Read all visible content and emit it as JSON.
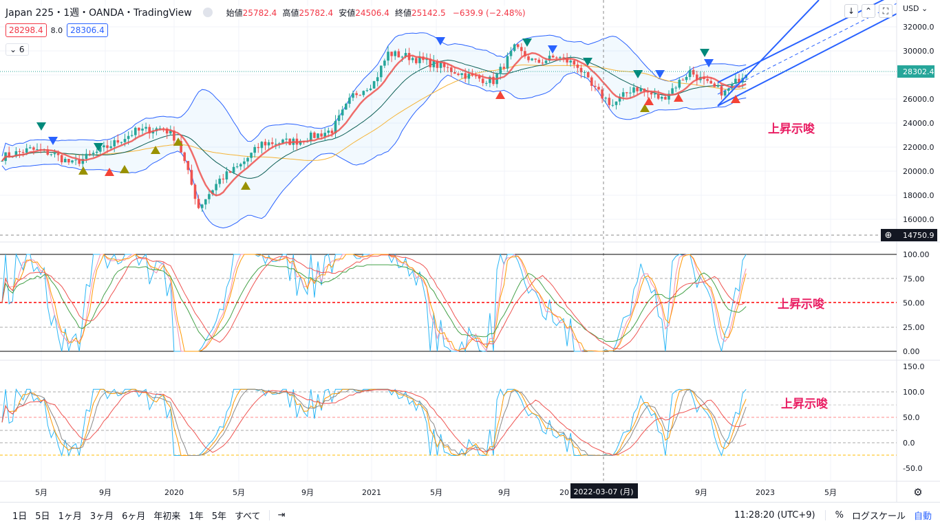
{
  "header": {
    "title": "Japan 225・1週・OANDA・TradingView",
    "open_label": "始値",
    "open": "25782.4",
    "high_label": "高値",
    "high": "25782.4",
    "low_label": "安値",
    "low": "24506.4",
    "close_label": "終値",
    "close": "25142.5",
    "change": "−639.9 (−2.48%)",
    "sell": "28298.4",
    "spread": "8.0",
    "buy": "28306.4",
    "collapse": "6"
  },
  "toolbar": {
    "down": "↓",
    "collapse": "⌃",
    "fullscreen": "⛶",
    "currency": "USD ⌄"
  },
  "price_axis": {
    "ticks": [
      "32000.0",
      "30000.0",
      "26000.0",
      "24000.0",
      "22000.0",
      "20000.0",
      "18000.0",
      "16000.0"
    ],
    "last_price": "28302.4",
    "crosshair_price": "14750.9",
    "last_color": "#26a69a"
  },
  "osc1_axis": {
    "ticks": [
      "100.00",
      "75.00",
      "50.00",
      "25.00",
      "0.00"
    ]
  },
  "osc2_axis": {
    "ticks": [
      "150.0",
      "100.0",
      "50.0",
      "0.0",
      "-50.0"
    ]
  },
  "time_axis": {
    "ticks": [
      "5月",
      "9月",
      "2020",
      "5月",
      "9月",
      "2021",
      "5月",
      "9月",
      "20",
      "9月",
      "2023",
      "5月"
    ],
    "crosshair_date": "2022-03-07 (月)"
  },
  "annotations": {
    "hint1": "上昇示唆",
    "hint2": "上昇示唆",
    "hint3": "上昇示唆"
  },
  "bottom": {
    "ranges": [
      "1日",
      "5日",
      "1ヶ月",
      "3ヶ月",
      "6ヶ月",
      "年初来",
      "1年",
      "5年",
      "すべて"
    ],
    "goto": "⇥",
    "time": "11:28:20 (UTC+9)",
    "percent": "%",
    "log": "ログスケール",
    "auto": "自動"
  },
  "chart_data": {
    "type": "candlestick",
    "symbol": "Japan 225",
    "interval": "1W",
    "ylim": [
      15000,
      33000
    ],
    "close_keypoints": [
      [
        0,
        21200
      ],
      [
        8,
        21800
      ],
      [
        14,
        21500
      ],
      [
        20,
        20600
      ],
      [
        28,
        21700
      ],
      [
        38,
        23300
      ],
      [
        46,
        23600
      ],
      [
        50,
        22600
      ],
      [
        56,
        17000
      ],
      [
        62,
        19300
      ],
      [
        68,
        20500
      ],
      [
        74,
        22300
      ],
      [
        84,
        22500
      ],
      [
        94,
        23400
      ],
      [
        100,
        26300
      ],
      [
        106,
        27400
      ],
      [
        110,
        29800
      ],
      [
        116,
        29500
      ],
      [
        124,
        28800
      ],
      [
        134,
        27800
      ],
      [
        140,
        27500
      ],
      [
        146,
        30200
      ],
      [
        152,
        29000
      ],
      [
        158,
        29500
      ],
      [
        164,
        28800
      ],
      [
        168,
        27000
      ],
      [
        174,
        25500
      ],
      [
        180,
        27000
      ],
      [
        188,
        26000
      ],
      [
        196,
        28300
      ],
      [
        202,
        27000
      ],
      [
        206,
        26500
      ],
      [
        212,
        28300
      ]
    ]
  }
}
